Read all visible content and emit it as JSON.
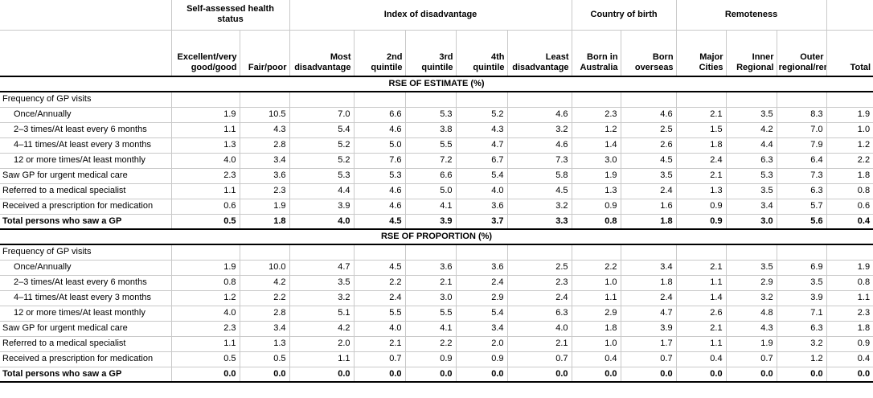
{
  "table": {
    "col_groups": [
      {
        "label": "Self-assessed health status",
        "span": 2
      },
      {
        "label": "Index of disadvantage",
        "span": 5
      },
      {
        "label": "Country of birth",
        "span": 2
      },
      {
        "label": "Remoteness",
        "span": 3
      }
    ],
    "columns": [
      "Excellent/very good/good",
      "Fair/poor",
      "Most disadvantage",
      "2nd quintile",
      "3rd quintile",
      "4th quintile",
      "Least disadvantage",
      "Born in Australia",
      "Born overseas",
      "Major Cities",
      "Inner Regional",
      "Outer regional/remote",
      "Total"
    ],
    "sections": [
      {
        "title": "RSE OF ESTIMATE (%)",
        "rows": [
          {
            "label": "Frequency of GP visits",
            "indent": false,
            "bold": false,
            "values": [
              "",
              "",
              "",
              "",
              "",
              "",
              "",
              "",
              "",
              "",
              "",
              "",
              ""
            ]
          },
          {
            "label": "Once/Annually",
            "indent": true,
            "bold": false,
            "values": [
              "1.9",
              "10.5",
              "7.0",
              "6.6",
              "5.3",
              "5.2",
              "4.6",
              "2.3",
              "4.6",
              "2.1",
              "3.5",
              "8.3",
              "1.9"
            ]
          },
          {
            "label": "2–3 times/At least every 6 months",
            "indent": true,
            "bold": false,
            "values": [
              "1.1",
              "4.3",
              "5.4",
              "4.6",
              "3.8",
              "4.3",
              "3.2",
              "1.2",
              "2.5",
              "1.5",
              "4.2",
              "7.0",
              "1.0"
            ]
          },
          {
            "label": "4–11 times/At least every 3 months",
            "indent": true,
            "bold": false,
            "values": [
              "1.3",
              "2.8",
              "5.2",
              "5.0",
              "5.5",
              "4.7",
              "4.6",
              "1.4",
              "2.6",
              "1.8",
              "4.4",
              "7.9",
              "1.2"
            ]
          },
          {
            "label": "12 or more times/At least monthly",
            "indent": true,
            "bold": false,
            "values": [
              "4.0",
              "3.4",
              "5.2",
              "7.6",
              "7.2",
              "6.7",
              "7.3",
              "3.0",
              "4.5",
              "2.4",
              "6.3",
              "6.4",
              "2.2"
            ]
          },
          {
            "label": "Saw GP for urgent medical care",
            "indent": false,
            "bold": false,
            "values": [
              "2.3",
              "3.6",
              "5.3",
              "5.3",
              "6.6",
              "5.4",
              "5.8",
              "1.9",
              "3.5",
              "2.1",
              "5.3",
              "7.3",
              "1.8"
            ]
          },
          {
            "label": "Referred to a medical specialist",
            "indent": false,
            "bold": false,
            "values": [
              "1.1",
              "2.3",
              "4.4",
              "4.6",
              "5.0",
              "4.0",
              "4.5",
              "1.3",
              "2.4",
              "1.3",
              "3.5",
              "6.3",
              "0.8"
            ]
          },
          {
            "label": "Received a prescription for medication",
            "indent": false,
            "bold": false,
            "values": [
              "0.6",
              "1.9",
              "3.9",
              "4.6",
              "4.1",
              "3.6",
              "3.2",
              "0.9",
              "1.6",
              "0.9",
              "3.4",
              "5.7",
              "0.6"
            ]
          },
          {
            "label": "Total persons who saw a GP",
            "indent": false,
            "bold": true,
            "values": [
              "0.5",
              "1.8",
              "4.0",
              "4.5",
              "3.9",
              "3.7",
              "3.3",
              "0.8",
              "1.8",
              "0.9",
              "3.0",
              "5.6",
              "0.4"
            ]
          }
        ]
      },
      {
        "title": "RSE OF PROPORTION (%)",
        "rows": [
          {
            "label": "Frequency of GP visits",
            "indent": false,
            "bold": false,
            "values": [
              "",
              "",
              "",
              "",
              "",
              "",
              "",
              "",
              "",
              "",
              "",
              "",
              ""
            ]
          },
          {
            "label": "Once/Annually",
            "indent": true,
            "bold": false,
            "values": [
              "1.9",
              "10.0",
              "4.7",
              "4.5",
              "3.6",
              "3.6",
              "2.5",
              "2.2",
              "3.4",
              "2.1",
              "3.5",
              "6.9",
              "1.9"
            ]
          },
          {
            "label": "2–3 times/At least every 6 months",
            "indent": true,
            "bold": false,
            "values": [
              "0.8",
              "4.2",
              "3.5",
              "2.2",
              "2.1",
              "2.4",
              "2.3",
              "1.0",
              "1.8",
              "1.1",
              "2.9",
              "3.5",
              "0.8"
            ]
          },
          {
            "label": "4–11 times/At least every 3 months",
            "indent": true,
            "bold": false,
            "values": [
              "1.2",
              "2.2",
              "3.2",
              "2.4",
              "3.0",
              "2.9",
              "2.4",
              "1.1",
              "2.4",
              "1.4",
              "3.2",
              "3.9",
              "1.1"
            ]
          },
          {
            "label": "12 or more times/At least monthly",
            "indent": true,
            "bold": false,
            "values": [
              "4.0",
              "2.8",
              "5.1",
              "5.5",
              "5.5",
              "5.4",
              "6.3",
              "2.9",
              "4.7",
              "2.6",
              "4.8",
              "7.1",
              "2.3"
            ]
          },
          {
            "label": "Saw GP for urgent medical care",
            "indent": false,
            "bold": false,
            "values": [
              "2.3",
              "3.4",
              "4.2",
              "4.0",
              "4.1",
              "3.4",
              "4.0",
              "1.8",
              "3.9",
              "2.1",
              "4.3",
              "6.3",
              "1.8"
            ]
          },
          {
            "label": "Referred to a medical specialist",
            "indent": false,
            "bold": false,
            "values": [
              "1.1",
              "1.3",
              "2.0",
              "2.1",
              "2.2",
              "2.0",
              "2.1",
              "1.0",
              "1.7",
              "1.1",
              "1.9",
              "3.2",
              "0.9"
            ]
          },
          {
            "label": "Received a prescription for medication",
            "indent": false,
            "bold": false,
            "values": [
              "0.5",
              "0.5",
              "1.1",
              "0.7",
              "0.9",
              "0.9",
              "0.7",
              "0.4",
              "0.7",
              "0.4",
              "0.7",
              "1.2",
              "0.4"
            ]
          },
          {
            "label": "Total persons who saw a GP",
            "indent": false,
            "bold": true,
            "values": [
              "0.0",
              "0.0",
              "0.0",
              "0.0",
              "0.0",
              "0.0",
              "0.0",
              "0.0",
              "0.0",
              "0.0",
              "0.0",
              "0.0",
              "0.0"
            ]
          }
        ]
      }
    ]
  }
}
